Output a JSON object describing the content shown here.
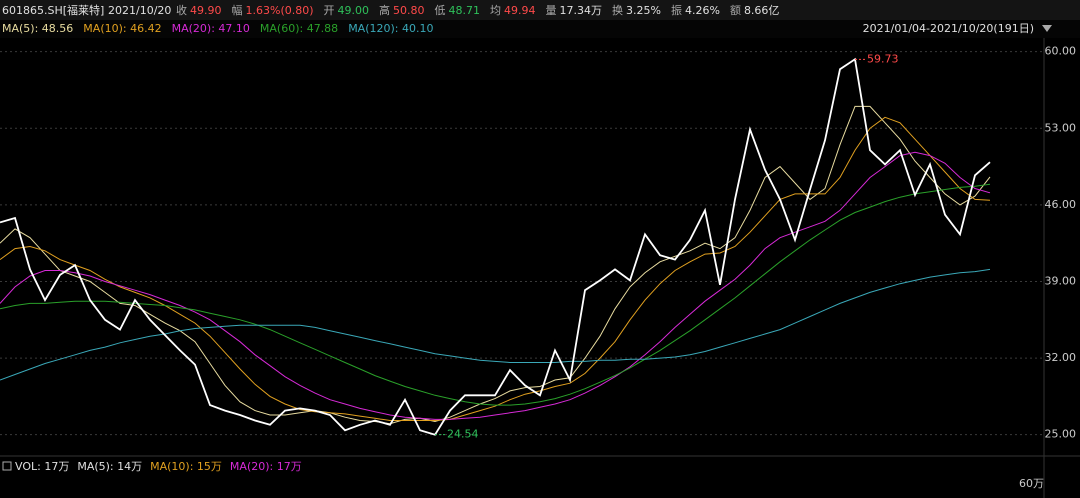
{
  "header": {
    "symbol": "601865.SH[福莱特]",
    "date": "2021/10/20",
    "quotes": [
      {
        "label": "收",
        "value": "49.90",
        "color": "#ff4a4a"
      },
      {
        "label": "幅",
        "value": "1.63%(0.80)",
        "color": "#ff4a4a"
      },
      {
        "label": "开",
        "value": "49.00",
        "color": "#2ec05a"
      },
      {
        "label": "高",
        "value": "50.80",
        "color": "#ff4a4a"
      },
      {
        "label": "低",
        "value": "48.71",
        "color": "#2ec05a"
      },
      {
        "label": "均",
        "value": "49.94",
        "color": "#ff4a4a"
      },
      {
        "label": "量",
        "value": "17.34万",
        "color": "#e0e0e0"
      },
      {
        "label": "换",
        "value": "3.25%",
        "color": "#e0e0e0"
      },
      {
        "label": "振",
        "value": "4.26%",
        "color": "#e0e0e0"
      },
      {
        "label": "额",
        "value": "8.66亿",
        "color": "#e0e0e0"
      }
    ],
    "range": "2021/01/04-2021/10/20(191日)"
  },
  "chart_data": {
    "type": "line",
    "categories": [
      null,
      null,
      null,
      null,
      null,
      null,
      null,
      null,
      null,
      null,
      null,
      null,
      null,
      null,
      null,
      null,
      null,
      null,
      null,
      null,
      null,
      null,
      null,
      null,
      null,
      null,
      null,
      null,
      null,
      null,
      null,
      null,
      null,
      null,
      null,
      null,
      null,
      null,
      null,
      null,
      null,
      null,
      null,
      null,
      null,
      null,
      null,
      null,
      null,
      null,
      null,
      null,
      null,
      null,
      null,
      null,
      null,
      null,
      null,
      null,
      null,
      null,
      null,
      null,
      null,
      null,
      null
    ],
    "series": [
      {
        "color": "#ffffff",
        "values": [
          44.4,
          44.8,
          40.1,
          37.3,
          39.6,
          40.5,
          37.3,
          35.5,
          34.6,
          37.3,
          35.5,
          34.1,
          32.7,
          31.4,
          27.7,
          27.2,
          26.8,
          26.3,
          25.9,
          27.2,
          27.4,
          27.2,
          26.8,
          25.4,
          25.9,
          26.3,
          25.9,
          28.2,
          25.4,
          25.0,
          27.2,
          28.6,
          28.6,
          28.6,
          30.9,
          29.5,
          28.6,
          32.7,
          30.0,
          38.2,
          39.1,
          40.1,
          39.1,
          43.3,
          41.4,
          41.0,
          42.8,
          45.5,
          38.7,
          46.5,
          52.9,
          49.2,
          46.5,
          42.8,
          47.4,
          51.9,
          58.4,
          59.3,
          51.0,
          49.7,
          51.0,
          46.9,
          49.7,
          45.1,
          43.3,
          48.7,
          49.9
        ]
      },
      {
        "name": "MA(5): 48.56",
        "color": "#e8dca0",
        "values": [
          42.5,
          43.8,
          43.0,
          41.5,
          40.0,
          39.5,
          39.0,
          38.0,
          37.0,
          36.8,
          36.0,
          35.2,
          34.5,
          33.5,
          31.5,
          29.5,
          28.0,
          27.2,
          26.8,
          26.8,
          27.0,
          27.2,
          27.0,
          26.6,
          26.3,
          26.2,
          26.0,
          26.4,
          26.5,
          26.2,
          26.6,
          27.2,
          27.8,
          28.3,
          29.0,
          29.3,
          29.4,
          30.0,
          30.2,
          32.0,
          34.0,
          36.5,
          38.5,
          39.8,
          40.8,
          41.3,
          41.8,
          42.5,
          42.0,
          43.0,
          45.5,
          48.5,
          49.5,
          48.0,
          46.5,
          47.5,
          51.5,
          55.0,
          55.0,
          53.5,
          52.0,
          50.0,
          48.5,
          47.0,
          46.0,
          46.8,
          48.56
        ]
      },
      {
        "name": "MA(10): 46.42",
        "color": "#e0a020",
        "values": [
          41.0,
          42.0,
          42.2,
          41.8,
          41.0,
          40.5,
          40.0,
          39.2,
          38.5,
          38.0,
          37.5,
          36.8,
          36.0,
          35.2,
          34.0,
          32.5,
          31.0,
          29.6,
          28.5,
          27.8,
          27.3,
          27.1,
          27.0,
          26.9,
          26.7,
          26.5,
          26.3,
          26.3,
          26.3,
          26.3,
          26.4,
          26.8,
          27.2,
          27.6,
          28.2,
          28.7,
          29.0,
          29.4,
          29.7,
          30.6,
          32.0,
          33.5,
          35.5,
          37.3,
          38.8,
          40.0,
          40.8,
          41.5,
          41.6,
          42.2,
          43.5,
          45.0,
          46.5,
          47.0,
          47.0,
          47.0,
          48.5,
          51.0,
          53.0,
          54.0,
          53.5,
          52.0,
          50.5,
          49.0,
          47.5,
          46.5,
          46.42
        ]
      },
      {
        "name": "MA(20): 47.10",
        "color": "#d62ad6",
        "values": [
          37.0,
          38.5,
          39.5,
          40.0,
          40.0,
          39.8,
          39.5,
          39.0,
          38.6,
          38.2,
          37.8,
          37.3,
          36.8,
          36.2,
          35.5,
          34.5,
          33.5,
          32.3,
          31.3,
          30.3,
          29.5,
          28.8,
          28.2,
          27.8,
          27.4,
          27.1,
          26.8,
          26.6,
          26.5,
          26.4,
          26.4,
          26.5,
          26.6,
          26.8,
          27.0,
          27.2,
          27.5,
          27.8,
          28.2,
          28.8,
          29.5,
          30.3,
          31.2,
          32.3,
          33.5,
          34.8,
          36.0,
          37.2,
          38.2,
          39.2,
          40.5,
          42.0,
          43.0,
          43.5,
          44.0,
          44.5,
          45.5,
          47.0,
          48.5,
          49.5,
          50.5,
          50.8,
          50.5,
          49.8,
          48.5,
          47.5,
          47.1
        ]
      },
      {
        "name": "MA(60): 47.88",
        "color": "#2aa02a",
        "values": [
          36.5,
          36.8,
          37.0,
          37.0,
          37.1,
          37.2,
          37.2,
          37.2,
          37.1,
          37.0,
          36.9,
          36.8,
          36.6,
          36.4,
          36.1,
          35.8,
          35.5,
          35.1,
          34.6,
          34.0,
          33.4,
          32.8,
          32.2,
          31.6,
          31.0,
          30.4,
          29.9,
          29.4,
          29.0,
          28.6,
          28.3,
          28.0,
          27.8,
          27.7,
          27.7,
          27.8,
          28.0,
          28.3,
          28.7,
          29.2,
          29.8,
          30.4,
          31.1,
          31.9,
          32.7,
          33.6,
          34.5,
          35.5,
          36.5,
          37.5,
          38.6,
          39.7,
          40.8,
          41.8,
          42.8,
          43.7,
          44.6,
          45.3,
          45.8,
          46.3,
          46.7,
          47.0,
          47.2,
          47.4,
          47.6,
          47.7,
          47.88
        ]
      },
      {
        "name": "MA(120): 40.10",
        "color": "#3aa8b8",
        "values": [
          30.0,
          30.5,
          31.0,
          31.5,
          31.9,
          32.3,
          32.7,
          33.0,
          33.4,
          33.7,
          34.0,
          34.2,
          34.5,
          34.7,
          34.8,
          34.9,
          35.0,
          35.0,
          35.0,
          35.0,
          35.0,
          34.8,
          34.5,
          34.2,
          33.9,
          33.6,
          33.3,
          33.0,
          32.7,
          32.4,
          32.2,
          32.0,
          31.8,
          31.7,
          31.6,
          31.6,
          31.6,
          31.6,
          31.7,
          31.7,
          31.8,
          31.8,
          31.9,
          31.9,
          32.0,
          32.1,
          32.3,
          32.6,
          33.0,
          33.4,
          33.8,
          34.2,
          34.6,
          35.2,
          35.8,
          36.4,
          37.0,
          37.5,
          38.0,
          38.4,
          38.8,
          39.1,
          39.4,
          39.6,
          39.8,
          39.9,
          40.1
        ]
      }
    ],
    "ylim": [
      23.6,
      60.7
    ],
    "yticks": [
      {
        "value": 60,
        "label": "60.00"
      },
      {
        "value": 53,
        "label": "53.00"
      },
      {
        "value": 46,
        "label": "46.00"
      },
      {
        "value": 39,
        "label": "39.00"
      },
      {
        "value": 32,
        "label": "32.00"
      },
      {
        "value": 25,
        "label": "25.00"
      }
    ],
    "grid": true,
    "max_label": "59.73",
    "min_label": "24.54",
    "max_color": "#ff4a4a",
    "min_color": "#2ec05a"
  },
  "volume": {
    "legend": [
      {
        "text": "VOL: 17万",
        "color": "#e0e0e0"
      },
      {
        "text": "MA(5): 14万",
        "color": "#e0e0e0"
      },
      {
        "text": "MA(10): 15万",
        "color": "#e0a020"
      },
      {
        "text": "MA(20): 17万",
        "color": "#d62ad6"
      }
    ],
    "axis_label": "60万"
  }
}
